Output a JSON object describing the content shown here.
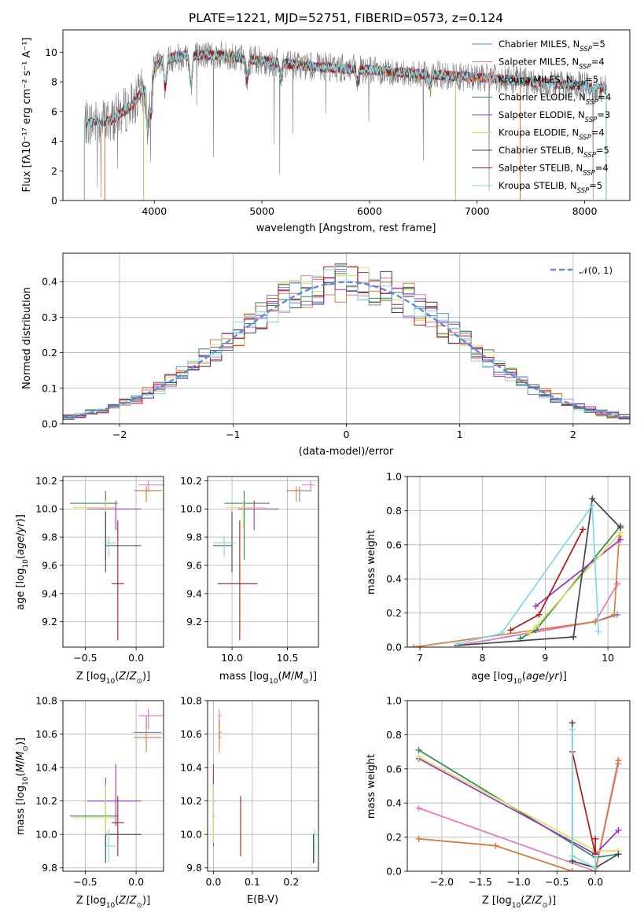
{
  "title": "PLATE=1221, MJD=52751, FIBERID=0573, z=0.124",
  "colors": {
    "Chabrier MILES": "#5b8bd8",
    "Salpeter MILES": "#e377c2",
    "Kroupa MILES": "#e07b39",
    "Chabrier ELODIE": "#2e8b57",
    "Salpeter ELODIE": "#9b30c9",
    "Kroupa ELODIE": "#dde15a",
    "Chabrier STELIB": "#444444",
    "Salpeter STELIB": "#b01818",
    "Kroupa STELIB": "#80d8e0",
    "normal": "#5b8bd8",
    "data": "#808080"
  },
  "chart_data": [
    {
      "id": "spectrum",
      "type": "line",
      "xlabel": "wavelength [Angstrom, rest frame]",
      "ylabel": "Flux [f_λ10^-17 erg cm^-2 s^-1 A^-1]",
      "xlim": [
        3150,
        8420
      ],
      "ylim": [
        0,
        11.5
      ],
      "xticks": [
        4000,
        5000,
        6000,
        7000,
        8000
      ],
      "yticks": [
        0,
        2,
        4,
        6,
        8,
        10
      ],
      "legend": [
        {
          "name": "Chabrier MILES",
          "sub": "SSP",
          "n": "5",
          "label": "Chabrier MILES, N"
        },
        {
          "name": "Salpeter MILES",
          "sub": "SSP",
          "n": "4",
          "label": "Salpeter MILES, N"
        },
        {
          "name": "Kroupa MILES",
          "sub": "SSP",
          "n": "5",
          "label": "Kroupa MILES, N"
        },
        {
          "name": "Chabrier ELODIE",
          "sub": "SSP",
          "n": "4",
          "label": "Chabrier ELODIE, N"
        },
        {
          "name": "Salpeter ELODIE",
          "sub": "SSP",
          "n": "3",
          "label": "Salpeter ELODIE, N"
        },
        {
          "name": "Kroupa ELODIE",
          "sub": "SSP",
          "n": "4",
          "label": "Kroupa ELODIE, N"
        },
        {
          "name": "Chabrier STELIB",
          "sub": "SSP",
          "n": "5",
          "label": "Chabrier STELIB, N"
        },
        {
          "name": "Salpeter STELIB",
          "sub": "SSP",
          "n": "4",
          "label": "Salpeter STELIB, N"
        },
        {
          "name": "Kroupa STELIB",
          "sub": "SSP",
          "n": "5",
          "label": "Kroupa STELIB, N"
        }
      ],
      "legend_placement": "upper-right",
      "continuum": {
        "x": [
          3350,
          3600,
          3800,
          3950,
          4050,
          4300,
          4600,
          5000,
          5500,
          6000,
          6500,
          7000,
          7500,
          8000,
          8200
        ],
        "y": [
          5.2,
          5.4,
          6.5,
          8.0,
          9.5,
          9.8,
          9.8,
          9.4,
          9.0,
          8.8,
          8.5,
          8.3,
          8.0,
          7.7,
          7.5
        ]
      },
      "model_range": {
        "Chabrier MILES": [
          3540,
          7400
        ],
        "Salpeter MILES": [
          3540,
          7400
        ],
        "Kroupa MILES": [
          3540,
          7400
        ],
        "Chabrier ELODIE": [
          3900,
          6800
        ],
        "Salpeter ELODIE": [
          3900,
          6800
        ],
        "Kroupa ELODIE": [
          3900,
          6800
        ],
        "Chabrier STELIB": [
          3350,
          8200
        ],
        "Salpeter STELIB": [
          3350,
          8200
        ],
        "Kroupa STELIB": [
          3350,
          8200
        ]
      }
    },
    {
      "id": "residuals",
      "type": "histogram",
      "xlabel": "(data-model)/error",
      "ylabel": "Normed distribution",
      "xlim": [
        -2.5,
        2.5
      ],
      "ylim": [
        0,
        0.48
      ],
      "xticks": [
        -2,
        -1,
        0,
        1,
        2
      ],
      "yticks": [
        0,
        0.1,
        0.2,
        0.3,
        0.4
      ],
      "grid": true,
      "legend": [
        "𝒩(0, 1)"
      ],
      "legend_placement": "upper-right",
      "bin_width": 0.1
    },
    {
      "id": "age-vs-Z",
      "type": "errorbar",
      "xlabel": "Z [log10(Z/Z⊙)]",
      "ylabel": "age  [log10(age/yr)]",
      "xlim": [
        -0.72,
        0.27
      ],
      "ylim": [
        9.02,
        10.23
      ],
      "xticks": [
        -0.5,
        0.0
      ],
      "yticks": [
        9.2,
        9.4,
        9.6,
        9.8,
        10.0,
        10.2
      ],
      "grid": true
    },
    {
      "id": "age-vs-mass",
      "type": "errorbar",
      "xlabel": "mass [log10(M/M⊙)]",
      "ylabel": "",
      "xlim": [
        9.78,
        10.78
      ],
      "ylim": [
        9.02,
        10.23
      ],
      "xticks": [
        10.0,
        10.5
      ],
      "yticks": [
        9.2,
        9.4,
        9.6,
        9.8,
        10.0,
        10.2
      ],
      "grid": true
    },
    {
      "id": "weight-vs-age",
      "type": "line",
      "xlabel": "age  [log10(age/yr)]",
      "ylabel": "mass weight",
      "xlim": [
        6.8,
        10.35
      ],
      "ylim": [
        0,
        1.0
      ],
      "xticks": [
        7,
        8,
        9,
        10
      ],
      "yticks": [
        0.0,
        0.2,
        0.4,
        0.6,
        0.8,
        1.0
      ],
      "grid": true,
      "series": [
        {
          "name": "Chabrier MILES",
          "x": [
            7.6,
            9.8,
            10.15
          ],
          "y": [
            0.01,
            0.15,
            0.19
          ]
        },
        {
          "name": "Salpeter MILES",
          "x": [
            7.6,
            9.8,
            10.15
          ],
          "y": [
            0.01,
            0.15,
            0.37
          ]
        },
        {
          "name": "Kroupa MILES",
          "x": [
            6.9,
            9.8,
            10.1,
            10.18
          ],
          "y": [
            0.0,
            0.15,
            0.19,
            0.65
          ]
        },
        {
          "name": "Chabrier ELODIE",
          "x": [
            8.6,
            8.85,
            10.2
          ],
          "y": [
            0.05,
            0.1,
            0.71
          ]
        },
        {
          "name": "Salpeter ELODIE",
          "x": [
            8.85,
            10.2
          ],
          "y": [
            0.24,
            0.63
          ]
        },
        {
          "name": "Kroupa ELODIE",
          "x": [
            8.75,
            8.85,
            10.2
          ],
          "y": [
            0.08,
            0.12,
            0.67
          ]
        },
        {
          "name": "Chabrier STELIB",
          "x": [
            7.6,
            9.45,
            9.75,
            10.2
          ],
          "y": [
            0.01,
            0.06,
            0.87,
            0.7
          ]
        },
        {
          "name": "Salpeter STELIB",
          "x": [
            8.45,
            8.9,
            9.6
          ],
          "y": [
            0.1,
            0.19,
            0.69
          ]
        },
        {
          "name": "Kroupa STELIB",
          "x": [
            7.6,
            8.3,
            9.75,
            9.85
          ],
          "y": [
            0.02,
            0.08,
            0.83,
            0.09
          ]
        }
      ]
    },
    {
      "id": "mass-vs-Z",
      "type": "errorbar",
      "xlabel": "Z [log10(Z/Z⊙)]",
      "ylabel": "mass [log10(M/M⊙)]",
      "xlim": [
        -0.72,
        0.27
      ],
      "ylim": [
        9.78,
        10.8
      ],
      "xticks": [
        -0.5,
        0.0
      ],
      "yticks": [
        9.8,
        10.0,
        10.2,
        10.4,
        10.6,
        10.8
      ],
      "grid": true
    },
    {
      "id": "mass-vs-EBV",
      "type": "errorbar",
      "xlabel": "E(B-V)",
      "ylabel": "",
      "xlim": [
        -0.015,
        0.27
      ],
      "ylim": [
        9.78,
        10.8
      ],
      "xticks": [
        0.0,
        0.1,
        0.2
      ],
      "yticks": [
        9.8,
        10.0,
        10.2,
        10.4,
        10.6,
        10.8
      ],
      "grid": true
    },
    {
      "id": "weight-vs-Z",
      "type": "line",
      "xlabel": "Z [log10(Z/Z⊙)]",
      "ylabel": "mass weight",
      "xlim": [
        -2.45,
        0.45
      ],
      "ylim": [
        0,
        1.0
      ],
      "xticks": [
        -2.0,
        -1.5,
        -1.0,
        -0.5,
        0.0
      ],
      "yticks": [
        0.0,
        0.2,
        0.4,
        0.6,
        0.8,
        1.0
      ],
      "grid": true,
      "series": [
        {
          "name": "Chabrier MILES",
          "x": [
            -2.3,
            -1.3,
            -0.3,
            0.0,
            0.3
          ],
          "y": [
            0.19,
            0.15,
            0.0,
            0.0,
            0.65
          ]
        },
        {
          "name": "Salpeter MILES",
          "x": [
            -2.3,
            0.0,
            0.3
          ],
          "y": [
            0.37,
            0.0,
            0.63
          ]
        },
        {
          "name": "Kroupa MILES",
          "x": [
            -2.3,
            -1.3,
            -0.3,
            0.0,
            0.3
          ],
          "y": [
            0.19,
            0.15,
            0.0,
            0.0,
            0.65
          ]
        },
        {
          "name": "Chabrier ELODIE",
          "x": [
            -2.3,
            0.0,
            0.3
          ],
          "y": [
            0.71,
            0.08,
            0.1
          ]
        },
        {
          "name": "Salpeter ELODIE",
          "x": [
            -2.3,
            0.0,
            0.3
          ],
          "y": [
            0.66,
            0.1,
            0.24
          ]
        },
        {
          "name": "Kroupa ELODIE",
          "x": [
            -2.3,
            0.0,
            0.3
          ],
          "y": [
            0.67,
            0.12,
            0.12
          ]
        },
        {
          "name": "Chabrier STELIB",
          "x": [
            -0.3,
            -0.3,
            0.0,
            0.3
          ],
          "y": [
            0.87,
            0.06,
            0.02,
            0.1
          ]
        },
        {
          "name": "Salpeter STELIB",
          "x": [
            -0.3,
            0.0,
            0.0
          ],
          "y": [
            0.7,
            0.1,
            0.19
          ]
        },
        {
          "name": "Kroupa STELIB",
          "x": [
            -0.3,
            -0.3,
            0.0,
            0.0
          ],
          "y": [
            0.83,
            0.09,
            0.02,
            0.08
          ]
        }
      ]
    }
  ],
  "errorbars": [
    {
      "name": "Chabrier MILES",
      "Z": 0.1,
      "Zerr": [
        0.12,
        0.15
      ],
      "age": 10.13,
      "aerr": [
        0.08,
        0.03
      ],
      "mass": 10.61,
      "merr": [
        0.09,
        0.1
      ],
      "ebv": 0.015,
      "eerr": [
        0.0,
        0.005
      ]
    },
    {
      "name": "Salpeter MILES",
      "Z": 0.12,
      "Zerr": [
        0.1,
        0.15
      ],
      "age": 10.17,
      "aerr": [
        0.05,
        0.03
      ],
      "mass": 10.71,
      "merr": [
        0.08,
        0.04
      ],
      "ebv": 0.015,
      "eerr": [
        0.0,
        0.005
      ]
    },
    {
      "name": "Kroupa MILES",
      "Z": 0.1,
      "Zerr": [
        0.12,
        0.15
      ],
      "age": 10.13,
      "aerr": [
        0.08,
        0.03
      ],
      "mass": 10.58,
      "merr": [
        0.09,
        0.1
      ],
      "ebv": 0.015,
      "eerr": [
        0.0,
        0.005
      ]
    },
    {
      "name": "Chabrier ELODIE",
      "Z": -0.3,
      "Zerr": [
        0.35,
        0.12
      ],
      "age": 10.04,
      "aerr": [
        0.4,
        0.09
      ],
      "mass": 10.11,
      "merr": [
        0.18,
        0.23
      ],
      "ebv": 0.0,
      "eerr": [
        0.0,
        0.003
      ]
    },
    {
      "name": "Salpeter ELODIE",
      "Z": -0.2,
      "Zerr": [
        0.28,
        0.25
      ],
      "age": 10.0,
      "aerr": [
        0.15,
        0.06
      ],
      "mass": 10.2,
      "merr": [
        0.15,
        0.22
      ],
      "ebv": 0.0,
      "eerr": [
        0.0,
        0.003
      ]
    },
    {
      "name": "Kroupa ELODIE",
      "Z": -0.3,
      "Zerr": [
        0.32,
        0.1
      ],
      "age": 10.01,
      "aerr": [
        0.15,
        0.05
      ],
      "mass": 10.1,
      "merr": [
        0.15,
        0.2
      ],
      "ebv": 0.0,
      "eerr": [
        0.0,
        0.003
      ]
    },
    {
      "name": "Chabrier STELIB",
      "Z": -0.3,
      "Zerr": [
        0.0,
        0.35
      ],
      "age": 9.74,
      "aerr": [
        0.19,
        0.24
      ],
      "mass": 10.0,
      "merr": [
        0.17,
        0.0
      ],
      "ebv": 0.257,
      "eerr": [
        0.0,
        0.003
      ]
    },
    {
      "name": "Salpeter STELIB",
      "Z": -0.18,
      "Zerr": [
        0.06,
        0.06
      ],
      "age": 9.47,
      "aerr": [
        0.4,
        0.45
      ],
      "mass": 10.07,
      "merr": [
        0.2,
        0.16
      ],
      "ebv": 0.07,
      "eerr": [
        0.0,
        0.0
      ]
    },
    {
      "name": "Kroupa STELIB",
      "Z": -0.27,
      "Zerr": [
        0.03,
        0.1
      ],
      "age": 9.76,
      "aerr": [
        0.1,
        0.05
      ],
      "mass": 9.93,
      "merr": [
        0.1,
        0.1
      ],
      "ebv": 0.26,
      "eerr": [
        0.0,
        0.003
      ]
    }
  ]
}
